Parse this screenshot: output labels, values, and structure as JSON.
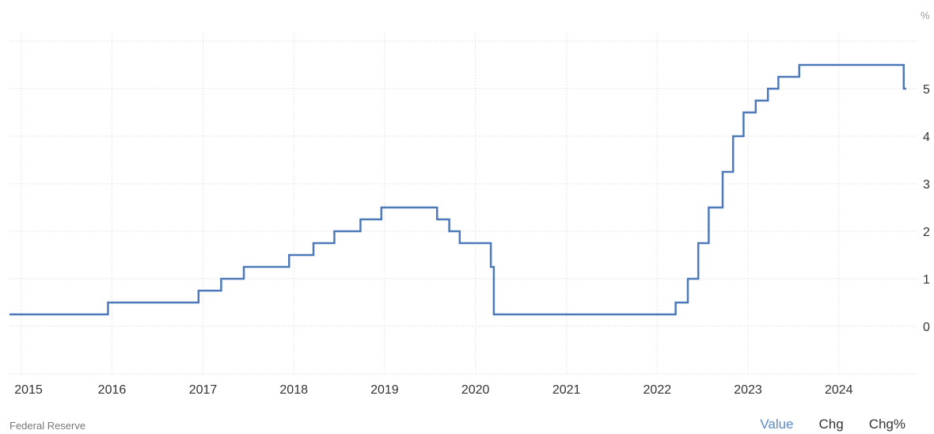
{
  "chart_data": {
    "type": "line",
    "step": true,
    "unit_label": "%",
    "x_ticks": [
      "2015",
      "2016",
      "2017",
      "2018",
      "2019",
      "2020",
      "2021",
      "2022",
      "2023",
      "2024"
    ],
    "y_ticks": [
      "0",
      "1",
      "2",
      "3",
      "4",
      "5"
    ],
    "ylim": [
      -1,
      6
    ],
    "xlim": [
      "2014-11-15",
      "2024-11-15"
    ],
    "grid": true,
    "line_color": "#4e79b8",
    "series": [
      {
        "points": [
          [
            "2014-11-15",
            0.25
          ],
          [
            "2015-12-16",
            0.5
          ],
          [
            "2016-12-14",
            0.75
          ],
          [
            "2017-03-15",
            1.0
          ],
          [
            "2017-06-14",
            1.25
          ],
          [
            "2017-12-13",
            1.5
          ],
          [
            "2018-03-21",
            1.75
          ],
          [
            "2018-06-13",
            2.0
          ],
          [
            "2018-09-26",
            2.25
          ],
          [
            "2018-12-19",
            2.5
          ],
          [
            "2019-07-31",
            2.25
          ],
          [
            "2019-09-18",
            2.0
          ],
          [
            "2019-10-30",
            1.75
          ],
          [
            "2020-03-03",
            1.25
          ],
          [
            "2020-03-15",
            0.25
          ],
          [
            "2022-03-16",
            0.5
          ],
          [
            "2022-05-04",
            1.0
          ],
          [
            "2022-06-15",
            1.75
          ],
          [
            "2022-07-27",
            2.5
          ],
          [
            "2022-09-21",
            3.25
          ],
          [
            "2022-11-02",
            4.0
          ],
          [
            "2022-12-14",
            4.5
          ],
          [
            "2023-02-01",
            4.75
          ],
          [
            "2023-03-22",
            5.0
          ],
          [
            "2023-05-03",
            5.25
          ],
          [
            "2023-07-26",
            5.5
          ],
          [
            "2024-09-18",
            5.0
          ]
        ],
        "end_date": "2024-09-28"
      }
    ]
  },
  "footer": {
    "source": "Federal Reserve",
    "tabs": [
      {
        "label": "Value",
        "active": true
      },
      {
        "label": "Chg",
        "active": false
      },
      {
        "label": "Chg%",
        "active": false
      }
    ]
  }
}
